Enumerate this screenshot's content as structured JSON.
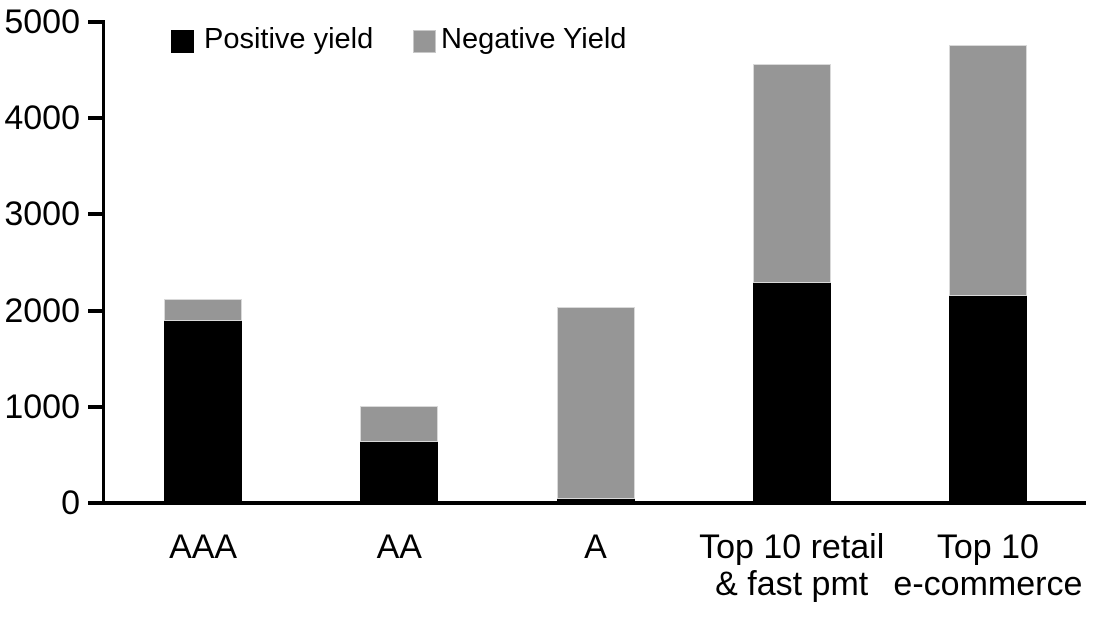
{
  "chart_data": {
    "type": "bar",
    "subtype": "stacked",
    "title": "",
    "xlabel": "",
    "ylabel": "",
    "grid": false,
    "background_color": "#ffffff",
    "axis_color": "#000000",
    "bar_border_color": "#d9d9d9",
    "legend_position": "top-inside",
    "categories": [
      "AAA",
      "AA",
      "A",
      "Top 10 retail & fast pmt",
      "Top 10 e-commerce"
    ],
    "category_label_lines": [
      [
        "AAA"
      ],
      [
        "AA"
      ],
      [
        "A"
      ],
      [
        "Top 10 retail",
        "& fast pmt"
      ],
      [
        "Top 10",
        "e-commerce"
      ]
    ],
    "series": [
      {
        "name": "Positive yield",
        "color": "#000000",
        "values": [
          1890,
          630,
          45,
          2290,
          2150
        ]
      },
      {
        "name": "Negative Yield",
        "color": "#969696",
        "values": [
          230,
          380,
          1990,
          2270,
          2610
        ]
      }
    ],
    "stacked_totals": [
      2120,
      1010,
      2035,
      4560,
      4760
    ],
    "ylim": [
      0,
      5000
    ],
    "yticks": [
      0,
      1000,
      2000,
      3000,
      4000,
      5000
    ],
    "ytick_labels": [
      "0",
      "1000",
      "2000",
      "3000",
      "4000",
      "5000"
    ]
  }
}
